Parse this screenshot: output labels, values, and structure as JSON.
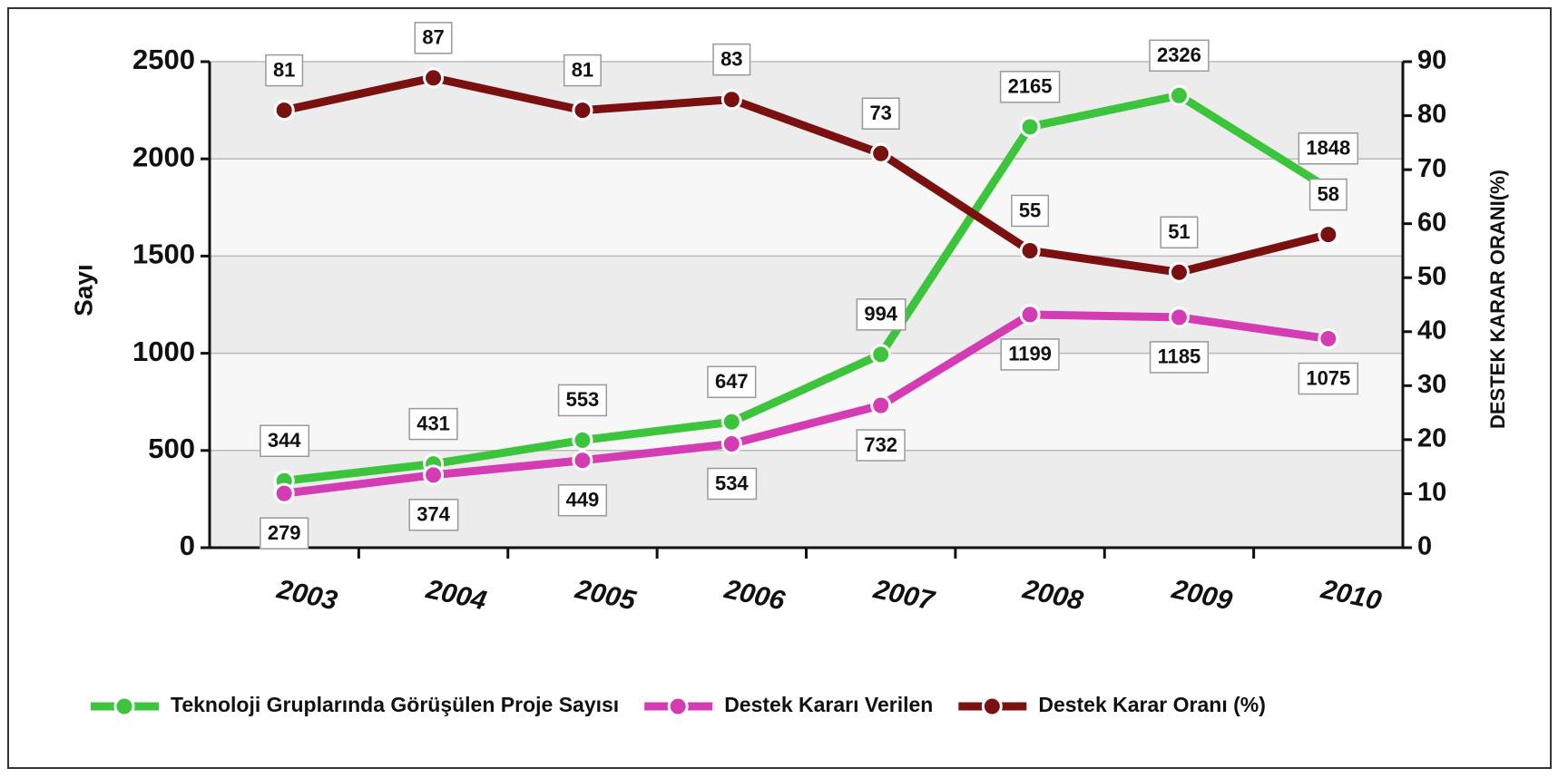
{
  "chart_data": {
    "type": "line",
    "categories": [
      "2003",
      "2004",
      "2005",
      "2006",
      "2007",
      "2008",
      "2009",
      "2010"
    ],
    "ylabel": "Sayı",
    "y2label": "DESTEK KARAR ORANI(%)",
    "ylim": [
      0,
      2500
    ],
    "yticks": [
      0,
      500,
      1000,
      1500,
      2000,
      2500
    ],
    "y2lim": [
      0,
      90
    ],
    "y2ticks": [
      0,
      10,
      20,
      30,
      40,
      50,
      60,
      70,
      80,
      90
    ],
    "grid": true,
    "legend": "bottom",
    "series": [
      {
        "name": "Teknoloji Gruplarında Görüşülen Proje Sayısı",
        "color": "#3cc43c",
        "values": [
          344,
          431,
          553,
          647,
          994,
          2165,
          2326,
          1848
        ]
      },
      {
        "name": "Destek Kararı Verilen",
        "color": "#d43cb4",
        "values": [
          279,
          374,
          449,
          534,
          732,
          1199,
          1185,
          1075
        ]
      },
      {
        "name": "Destek Karar Oranı (%)",
        "color": "#7a1010",
        "axis": "y2",
        "values": [
          81,
          87,
          81,
          83,
          73,
          55,
          51,
          58
        ]
      }
    ]
  }
}
